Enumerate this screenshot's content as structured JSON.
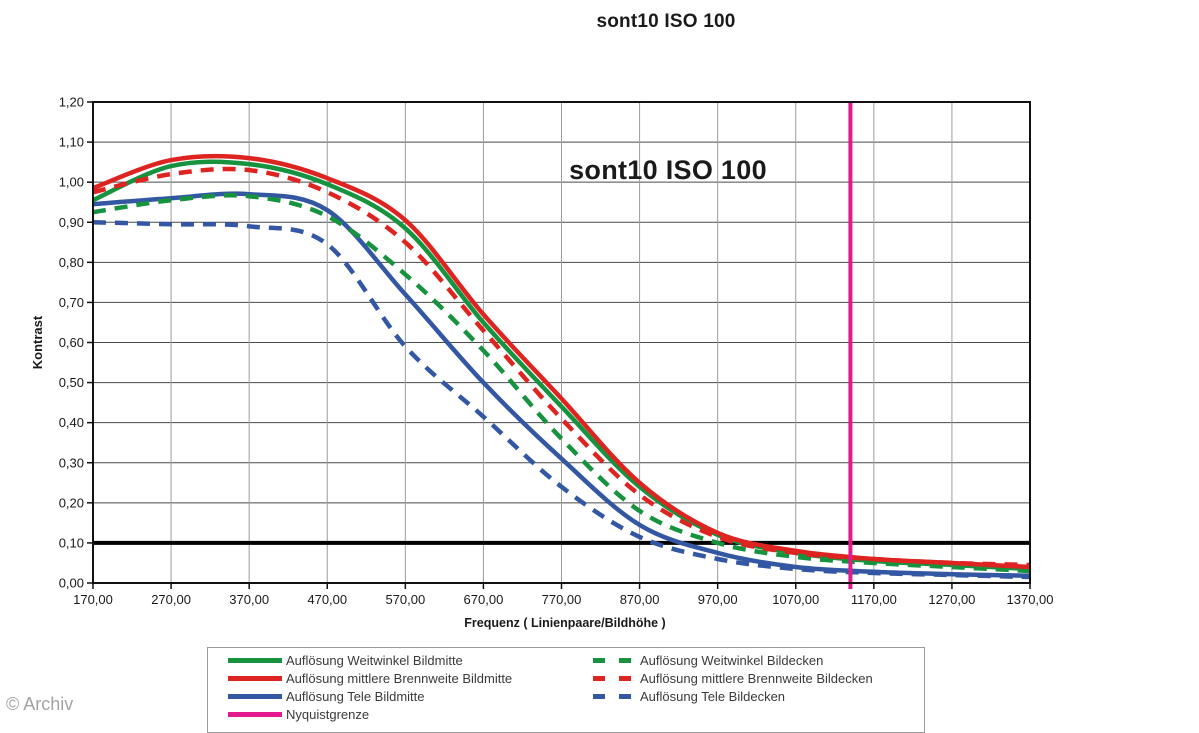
{
  "page": {
    "watermark": "© Archiv"
  },
  "chart_data": {
    "type": "line",
    "title": "sont10 ISO 100",
    "inplot_title": "sont10 ISO 100",
    "xlabel": "Frequenz ( Linienpaare/Bildhöhe )",
    "ylabel": "Kontrast",
    "xlim": [
      170,
      1370
    ],
    "ylim": [
      0.0,
      1.2
    ],
    "x": [
      170,
      270,
      370,
      470,
      570,
      670,
      770,
      870,
      970,
      1070,
      1170,
      1270,
      1370
    ],
    "y_ticks": [
      0.0,
      0.1,
      0.2,
      0.3,
      0.4,
      0.5,
      0.6,
      0.7,
      0.8,
      0.9,
      1.0,
      1.1,
      1.2
    ],
    "decimal_separator": ",",
    "grid": {
      "visible": true,
      "h_color": "#4a4a4a",
      "v_color": "#9c9c9c"
    },
    "threshold_line": {
      "y": 0.1,
      "color": "#000000",
      "width": 4
    },
    "nyquist": {
      "x": 1140,
      "color": "#e31a8d",
      "label": "Nyquistgrenze",
      "width": 4
    },
    "series": [
      {
        "name": "Auflösung Weitwinkel Bildmitte",
        "color": "#17923e",
        "dash": false,
        "values": [
          0.955,
          1.04,
          1.045,
          0.995,
          0.885,
          0.65,
          0.44,
          0.24,
          0.12,
          0.075,
          0.055,
          0.045,
          0.035
        ]
      },
      {
        "name": "Auflösung mittlere Brennweite Bildmitte",
        "color": "#de2421",
        "dash": false,
        "values": [
          0.985,
          1.055,
          1.06,
          1.01,
          0.905,
          0.67,
          0.46,
          0.25,
          0.125,
          0.08,
          0.06,
          0.05,
          0.04
        ]
      },
      {
        "name": "Auflösung Tele Bildmitte",
        "color": "#3457a4",
        "dash": false,
        "values": [
          0.945,
          0.96,
          0.97,
          0.93,
          0.72,
          0.5,
          0.31,
          0.145,
          0.075,
          0.04,
          0.028,
          0.022,
          0.018
        ]
      },
      {
        "name": "Auflösung Weitwinkel Bildecken",
        "color": "#17923e",
        "dash": true,
        "values": [
          0.925,
          0.955,
          0.965,
          0.915,
          0.77,
          0.58,
          0.36,
          0.18,
          0.1,
          0.065,
          0.05,
          0.04,
          0.03
        ]
      },
      {
        "name": "Auflösung mittlere Brennweite Bildecken",
        "color": "#de2421",
        "dash": true,
        "values": [
          0.975,
          1.02,
          1.03,
          0.975,
          0.85,
          0.63,
          0.41,
          0.22,
          0.115,
          0.075,
          0.06,
          0.05,
          0.045
        ]
      },
      {
        "name": "Auflösung Tele Bildecken",
        "color": "#3457a4",
        "dash": true,
        "values": [
          0.9,
          0.895,
          0.89,
          0.845,
          0.59,
          0.415,
          0.24,
          0.115,
          0.06,
          0.035,
          0.025,
          0.02,
          0.015
        ]
      }
    ],
    "legend": {
      "position": "bottom",
      "left_column": [
        {
          "label": "Auflösung Weitwinkel Bildmitte",
          "color": "#17923e",
          "dash": false
        },
        {
          "label": "Auflösung mittlere Brennweite Bildmitte",
          "color": "#de2421",
          "dash": false
        },
        {
          "label": "Auflösung Tele Bildmitte",
          "color": "#3457a4",
          "dash": false
        },
        {
          "label": "Nyquistgrenze",
          "color": "#e31a8d",
          "dash": false
        }
      ],
      "right_column": [
        {
          "label": "Auflösung Weitwinkel Bildecken",
          "color": "#17923e",
          "dash": true
        },
        {
          "label": "Auflösung mittlere Brennweite Bildecken",
          "color": "#de2421",
          "dash": true
        },
        {
          "label": "Auflösung Tele Bildecken",
          "color": "#3457a4",
          "dash": true
        }
      ]
    }
  }
}
